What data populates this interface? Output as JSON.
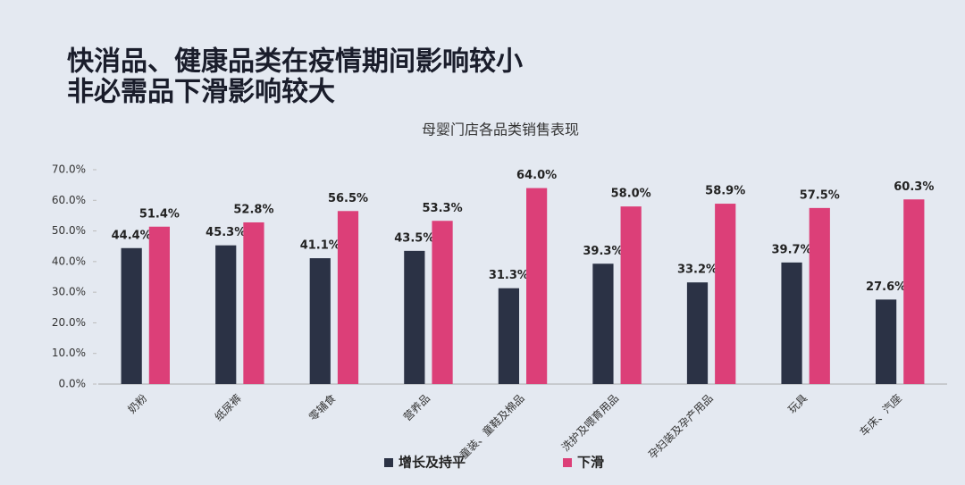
{
  "headline": [
    "快消品、健康品类在疫情期间影响较小",
    "非必需品下滑影响较大"
  ],
  "chart_data": {
    "type": "bar",
    "title": "母婴门店各品类销售表现",
    "categories": [
      "奶粉",
      "纸尿裤",
      "零辅食",
      "营养品",
      "童装、童鞋及棉品",
      "洗护及喂育用品",
      "孕妇装及孕产用品",
      "玩具",
      "车床、汽座"
    ],
    "series": [
      {
        "name": "增长及持平",
        "color": "#2b3245",
        "values": [
          44.4,
          45.3,
          41.1,
          43.5,
          31.3,
          39.3,
          33.2,
          39.7,
          27.6
        ],
        "value_labels": [
          "44.4%",
          "45.3%",
          "41.1%",
          "43.5%",
          "31.3%",
          "39.3%",
          "33.2%",
          "39.7%",
          "27.6%"
        ]
      },
      {
        "name": "下滑",
        "color": "#dc3f78",
        "values": [
          51.4,
          52.8,
          56.5,
          53.3,
          64.0,
          58.0,
          58.9,
          57.5,
          60.3
        ],
        "value_labels": [
          "51.4%",
          "52.8%",
          "56.5%",
          "53.3%",
          "64.0%",
          "58.0%",
          "58.9%",
          "57.5%",
          "60.3%"
        ]
      }
    ],
    "ylim": [
      0,
      70
    ],
    "yticks": [
      {
        "value": 0,
        "label": "0.0%"
      },
      {
        "value": 10,
        "label": "10.0%"
      },
      {
        "value": 20,
        "label": "20.0%"
      },
      {
        "value": 30,
        "label": "30.0%"
      },
      {
        "value": 40,
        "label": "40.0%"
      },
      {
        "value": 50,
        "label": "50.0%"
      },
      {
        "value": 60,
        "label": "60.0%"
      },
      {
        "value": 70,
        "label": "70.0%"
      }
    ],
    "legend": "bottom"
  }
}
